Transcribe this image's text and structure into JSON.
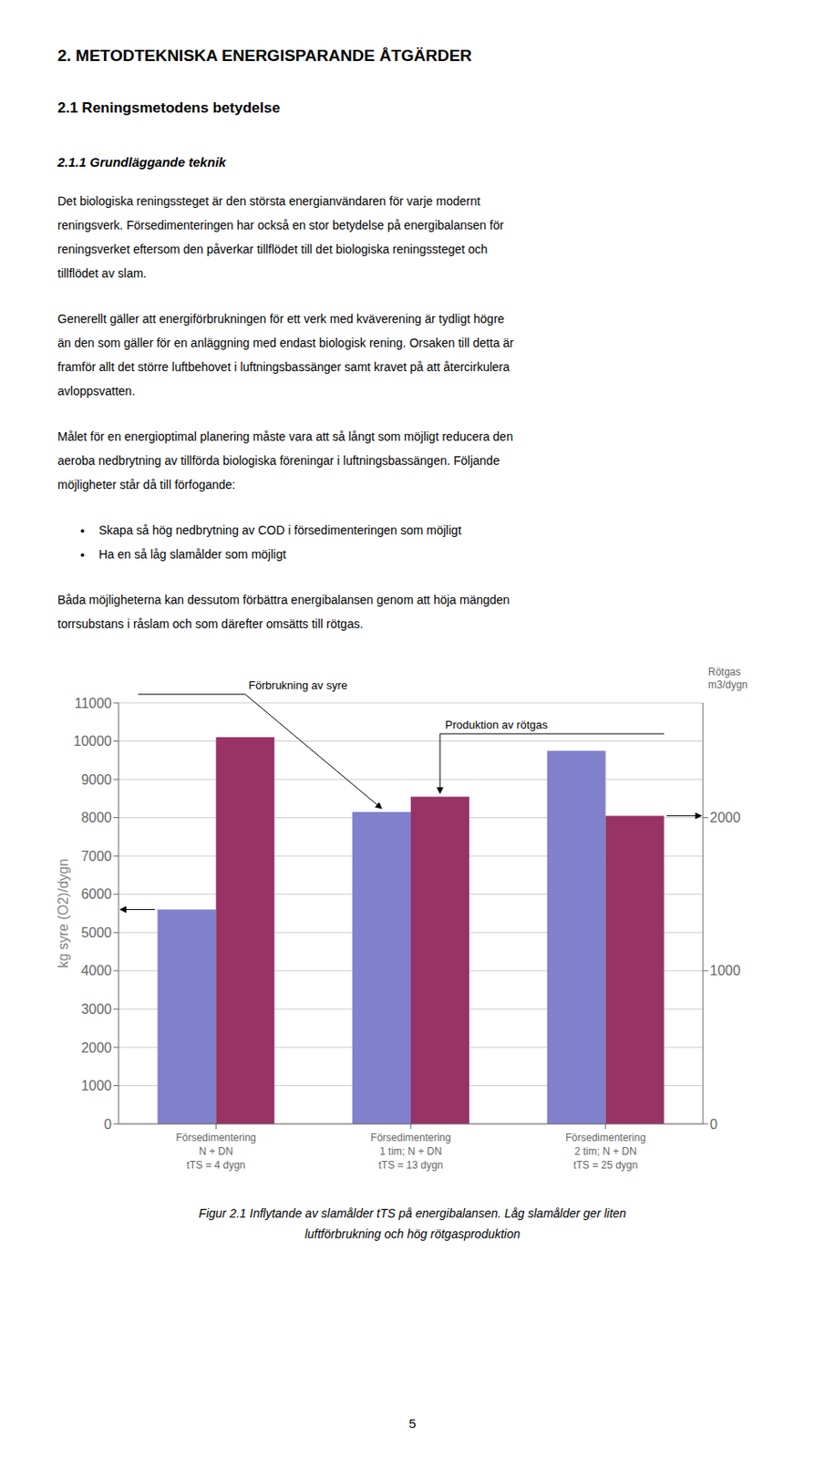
{
  "chart_data": {
    "type": "bar",
    "title": "2. METODTEKNISKA ENERGISPARANDE ÅTGÄRDER",
    "subtitle": [
      "2.1 Reningsmetodens betydelse",
      "2.1.1 Grundläggande teknik"
    ],
    "body": [
      {
        "lines": [
          "Det biologiska reningssteget är den största energianvändaren för varje modernt",
          "reningsverk. Försedimenteringen har också en stor betydelse på energibalansen för",
          "reningsverket eftersom den påverkar tillflödet till det biologiska reningssteget och",
          "tillflödet av slam."
        ]
      },
      {
        "lines": [
          "Generellt gäller att energiförbrukningen för ett verk med kväverening är tydligt högre",
          "än den som gäller för en anläggning med endast biologisk rening. Orsaken till detta är",
          "framför allt det större luftbehovet i luftningsbassänger samt kravet på att återcirkulera",
          "avloppsvatten."
        ]
      },
      {
        "lines": [
          "Målet för en energioptimal planering måste vara att så långt som möjligt reducera den",
          "aeroba nedbrytning av tillförda biologiska föreningar i luftningsbassängen. Följande",
          "möjligheter står då till förfogande:"
        ]
      },
      {
        "bullets": [
          "Skapa så hög nedbrytning av COD i försedimenteringen som möjligt",
          "Ha en så låg slamålder som möjligt"
        ]
      },
      {
        "lines": [
          "Båda möjligheterna kan dessutom förbättra energibalansen genom att höja mängden",
          "torrsubstans i råslam och som därefter omsätts till rötgas."
        ]
      }
    ],
    "categories": [
      "Försedimentering\nN + DN\ntTS = 4 dygn",
      "Försedimentering\n1 tim; N + DN\ntTS = 13 dygn",
      "Försedimentering\n2 tim; N + DN\ntTS = 25 dygn"
    ],
    "series": [
      {
        "name": "Förbrukning av syre",
        "color": "#8080CC",
        "values": [
          5600,
          8150,
          9750
        ]
      },
      {
        "name": "Produktion av rötgas",
        "color": "#993366",
        "values": [
          10100,
          8550,
          8050
        ]
      }
    ],
    "ylabel": "kg syre (O2)/dygn",
    "ylim": [
      0,
      11000
    ],
    "yticks": [
      0,
      1000,
      2000,
      3000,
      4000,
      5000,
      6000,
      7000,
      8000,
      9000,
      10000,
      11000
    ],
    "y2label": [
      "Rötgas",
      "m3/dygn"
    ],
    "y2lim": [
      0,
      2750
    ],
    "y2ticks": [
      0,
      1000,
      2000
    ],
    "grid": true,
    "caption": [
      "Figur 2.1 Inflytande av slamålder tTS på energibalansen. Låg slamålder ger liten",
      "luftförbrukning och hög rötgasproduktion"
    ],
    "page_number": "5"
  }
}
